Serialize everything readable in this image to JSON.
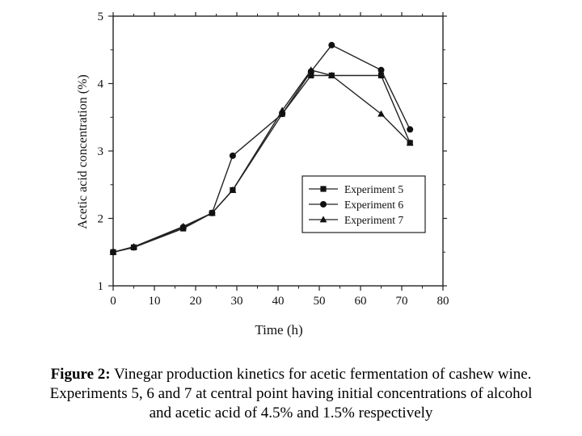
{
  "chart_data": {
    "type": "line",
    "xlabel": "Time (h)",
    "ylabel": "Acetic acid concentration (%)",
    "xlim": [
      0,
      80
    ],
    "ylim": [
      1,
      5
    ],
    "x_ticks": [
      0,
      10,
      20,
      30,
      40,
      50,
      60,
      70,
      80
    ],
    "y_ticks": [
      1,
      2,
      3,
      4,
      5
    ],
    "x_tick_labels": [
      "0",
      "10",
      "20",
      "30",
      "40",
      "50",
      "60",
      "70",
      "80"
    ],
    "y_tick_labels": [
      "1",
      "2",
      "3",
      "4",
      "5"
    ],
    "grid": false,
    "legend_position": "center-right",
    "series": [
      {
        "name": "Experiment 5",
        "marker": "square",
        "x": [
          0,
          5,
          17,
          24,
          29,
          41,
          48,
          53,
          65,
          72
        ],
        "y": [
          1.5,
          1.57,
          1.85,
          2.08,
          2.42,
          3.55,
          4.12,
          4.12,
          4.12,
          3.12
        ]
      },
      {
        "name": "Experiment 6",
        "marker": "circle",
        "x": [
          0,
          5,
          17,
          24,
          29,
          41,
          48,
          53,
          65,
          72
        ],
        "y": [
          1.5,
          1.57,
          1.87,
          2.08,
          2.93,
          3.55,
          4.18,
          4.57,
          4.2,
          3.32
        ]
      },
      {
        "name": "Experiment 7",
        "marker": "triangle",
        "x": [
          0,
          5,
          17,
          24,
          29,
          41,
          48,
          53,
          65,
          72
        ],
        "y": [
          1.5,
          1.58,
          1.88,
          2.08,
          2.42,
          3.6,
          4.2,
          4.12,
          3.55,
          3.12
        ]
      }
    ]
  },
  "caption": {
    "label": "Figure 2:",
    "line1": " Vinegar production kinetics for acetic fermentation of cashew wine.",
    "line2": "Experiments 5, 6 and 7 at central point having initial concentrations of alcohol",
    "line3": "and acetic acid of 4.5% and 1.5% respectively"
  }
}
